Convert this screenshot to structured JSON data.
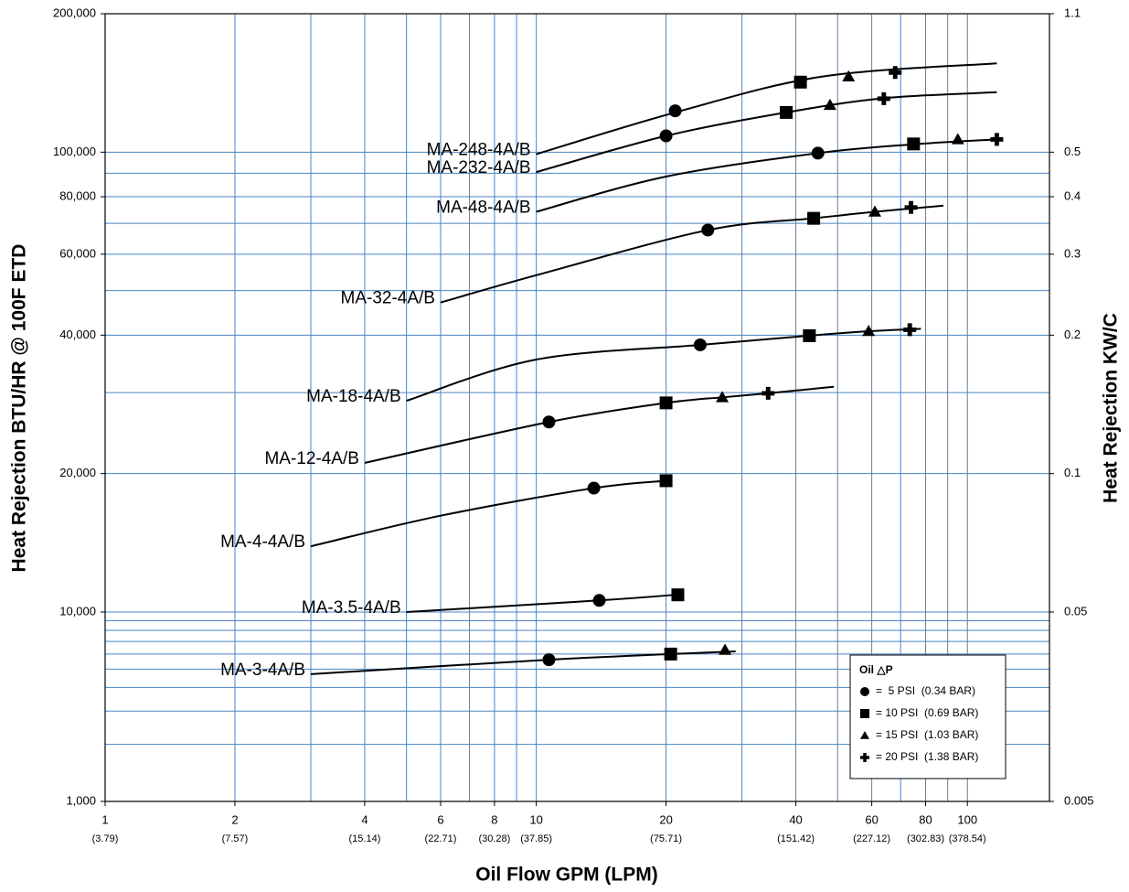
{
  "chart_data": {
    "type": "curves",
    "x_title": "Oil Flow GPM (LPM)",
    "y_title": "Heat Rejection BTU/HR @ 100F ETD",
    "y2_title": "Heat Rejection KW/C",
    "x_scale": "log",
    "y_scale": "log",
    "xlim": [
      1,
      155
    ],
    "ylim": [
      1000,
      200000
    ],
    "xticks": [
      1,
      2,
      4,
      6,
      8,
      10,
      20,
      40,
      60,
      80,
      100
    ],
    "xtick_lpm": [
      "(3.79)",
      "(7.57)",
      "(15.14)",
      "(22.71)",
      "(30.28)",
      "(37.85)",
      "(75.71)",
      "(151.42)",
      "(227.12)",
      "(302.83)",
      "(378.54)"
    ],
    "yticks": [
      {
        "value": 1000,
        "label": "1,000"
      },
      {
        "value": 10000,
        "label": "10,000"
      },
      {
        "value": 20000,
        "label": "20,000"
      },
      {
        "value": 40000,
        "label": "40,000"
      },
      {
        "value": 60000,
        "label": "60,000"
      },
      {
        "value": 80000,
        "label": "80,000"
      },
      {
        "value": 100000,
        "label": "100,000"
      },
      {
        "value": 200000,
        "label": "200,000"
      }
    ],
    "y2ticks": [
      0.005,
      0.05,
      0.1,
      0.2,
      0.3,
      0.4,
      0.5,
      1.1
    ],
    "xgrid": [
      2,
      3,
      4,
      5,
      6,
      7,
      8,
      9,
      10,
      20,
      30,
      40,
      50,
      60,
      70,
      80,
      90,
      100
    ],
    "ygrid": [
      2000,
      3000,
      4000,
      5000,
      6000,
      7000,
      8000,
      9000,
      10000,
      20000,
      30000,
      40000,
      50000,
      60000,
      70000,
      80000,
      90000,
      100000
    ],
    "grid": true,
    "grid_color": "#4a84c0",
    "line_color": "#000000",
    "legend": {
      "title": "Oil △P",
      "position": "lower right",
      "entries": [
        {
          "shape": "circle",
          "label": "=  5 PSI  (0.34 BAR)"
        },
        {
          "shape": "square",
          "label": "= 10 PSI  (0.69 BAR)"
        },
        {
          "shape": "triangle",
          "label": "= 15 PSI  (1.03 BAR)"
        },
        {
          "shape": "plus",
          "label": "= 20 PSI  (1.38 BAR)"
        }
      ]
    },
    "series": [
      {
        "name": "MA-248-4A/B",
        "x": [
          10,
          21,
          46,
          117
        ],
        "values": [
          99000,
          122000,
          146000,
          156000
        ],
        "markers": {
          "x": [
            21,
            41,
            53,
            68
          ],
          "values": [
            123000,
            142000,
            146000,
            149000
          ],
          "shapes": [
            "circle",
            "square",
            "triangle",
            "plus"
          ]
        }
      },
      {
        "name": "MA-232-4A/B",
        "x": [
          10,
          20,
          38,
          64,
          117
        ],
        "values": [
          90500,
          108500,
          122000,
          131000,
          135000
        ],
        "markers": {
          "x": [
            20,
            38,
            48,
            64
          ],
          "values": [
            108500,
            122000,
            126600,
            130700
          ],
          "shapes": [
            "circle",
            "square",
            "triangle",
            "plus"
          ]
        }
      },
      {
        "name": "MA-48-4A/B",
        "x": [
          10,
          20,
          45,
          75,
          117
        ],
        "values": [
          74200,
          88500,
          99500,
          104000,
          106600
        ],
        "markers": {
          "x": [
            45,
            75,
            95,
            117
          ],
          "values": [
            99500,
            104200,
            106600,
            106600
          ],
          "shapes": [
            "circle",
            "square",
            "triangle",
            "plus"
          ]
        }
      },
      {
        "name": "MA-32-4A/B",
        "x": [
          6,
          10,
          25,
          44,
          61,
          88
        ],
        "values": [
          47100,
          54000,
          67700,
          71800,
          74200,
          76500
        ],
        "markers": {
          "x": [
            25,
            44,
            61,
            74
          ],
          "values": [
            67700,
            71800,
            74200,
            75800
          ],
          "shapes": [
            "circle",
            "square",
            "triangle",
            "plus"
          ]
        }
      },
      {
        "name": "MA-18-4A/B",
        "x": [
          5,
          10,
          24,
          43,
          59,
          78
        ],
        "values": [
          28800,
          35400,
          38100,
          39900,
          40800,
          41300
        ],
        "markers": {
          "x": [
            24,
            43,
            59,
            73.5
          ],
          "values": [
            38100,
            39900,
            40800,
            41100
          ],
          "shapes": [
            "circle",
            "square",
            "triangle",
            "plus"
          ]
        }
      },
      {
        "name": "MA-12-4A/B",
        "x": [
          4,
          10.7,
          20,
          27,
          34.5,
          49
        ],
        "values": [
          21100,
          25900,
          28500,
          29300,
          29900,
          30900
        ],
        "markers": {
          "x": [
            10.7,
            20,
            27,
            34.5
          ],
          "values": [
            25900,
            28500,
            29300,
            29900
          ],
          "shapes": [
            "circle",
            "square",
            "triangle",
            "plus"
          ]
        }
      },
      {
        "name": "MA-4-4A/B",
        "x": [
          3,
          6,
          13.6,
          20
        ],
        "values": [
          13900,
          16200,
          18600,
          19300
        ],
        "markers": {
          "x": [
            13.6,
            20
          ],
          "values": [
            18600,
            19300
          ],
          "shapes": [
            "circle",
            "square"
          ]
        }
      },
      {
        "name": "MA-3.5-4A/B",
        "x": [
          5,
          14,
          21
        ],
        "values": [
          10000,
          10600,
          10900
        ],
        "markers": {
          "x": [
            14,
            21.3
          ],
          "values": [
            10600,
            10900
          ],
          "shapes": [
            "circle",
            "square"
          ]
        }
      },
      {
        "name": "MA-3-4A/B",
        "x": [
          3,
          10.7,
          20.5,
          29
        ],
        "values": [
          4700,
          5600,
          6000,
          6200
        ],
        "markers": {
          "x": [
            10.7,
            20.5,
            27.4
          ],
          "values": [
            5600,
            6000,
            6300
          ],
          "shapes": [
            "circle",
            "square",
            "triangle"
          ]
        }
      }
    ]
  }
}
